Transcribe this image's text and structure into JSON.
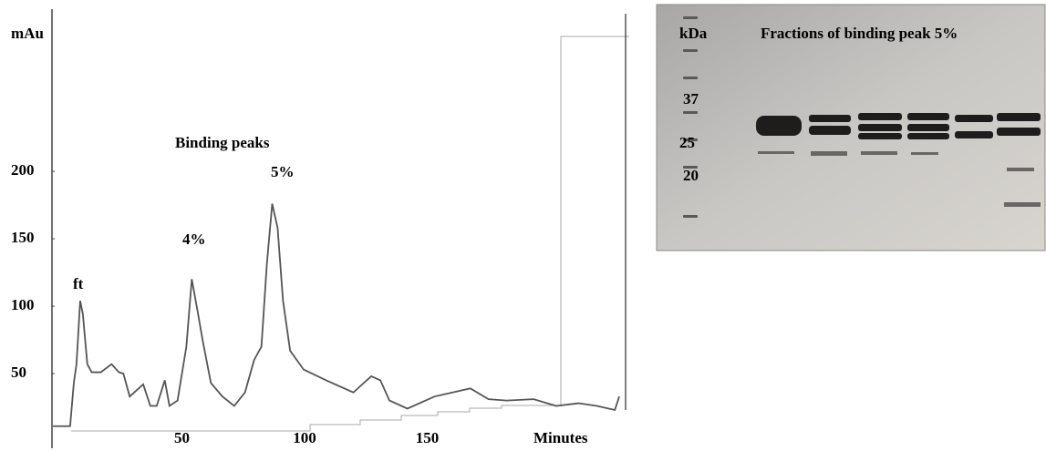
{
  "chart_data": {
    "type": "line",
    "y_label": "mAu",
    "x_label": "Minutes",
    "annotations": [
      "ft",
      "Binding peaks",
      "4%",
      "5%"
    ],
    "x": [
      -2.6,
      4.4,
      5.9,
      7,
      8.5,
      9.6,
      11.4,
      13.2,
      16.9,
      21.3,
      24.3,
      26.1,
      28.7,
      34.2,
      37.1,
      39.7,
      43,
      44.9,
      48.2,
      51.8,
      54,
      56.3,
      58.5,
      61.8,
      66.5,
      71.3,
      75.7,
      79.4,
      82.4,
      84.6,
      86.8,
      89,
      91.2,
      94.1,
      99.6,
      108.8,
      119.9,
      123.5,
      127.2,
      130.9,
      134.6,
      141.9,
      153,
      160.3,
      167.6,
      175,
      182.4,
      193.4,
      202.6,
      211.8,
      219.1,
      226.5,
      228.3
    ],
    "series": [
      {
        "color": "#555555",
        "values": [
          11,
          11,
          43,
          57,
          104,
          94,
          57,
          51,
          51,
          57,
          51,
          50,
          33,
          42,
          26,
          26,
          45,
          26,
          30,
          70,
          120,
          97,
          74,
          43,
          33,
          26,
          36,
          60,
          70,
          131,
          176,
          158,
          104,
          67,
          53,
          45,
          36,
          42,
          48,
          45,
          30,
          24,
          33,
          36,
          39,
          31,
          30,
          31,
          26,
          28,
          26,
          23,
          33
        ]
      }
    ],
    "xlim": [
      -3,
      232
    ],
    "ylim": [
      0,
      317
    ],
    "xticks": [
      50,
      100,
      150
    ],
    "yticks": [
      50,
      100,
      150,
      200
    ]
  },
  "gel": {
    "unit": "kDa",
    "title": "Fractions of binding peak 5%",
    "markers": [
      "37",
      "25",
      "20"
    ]
  }
}
